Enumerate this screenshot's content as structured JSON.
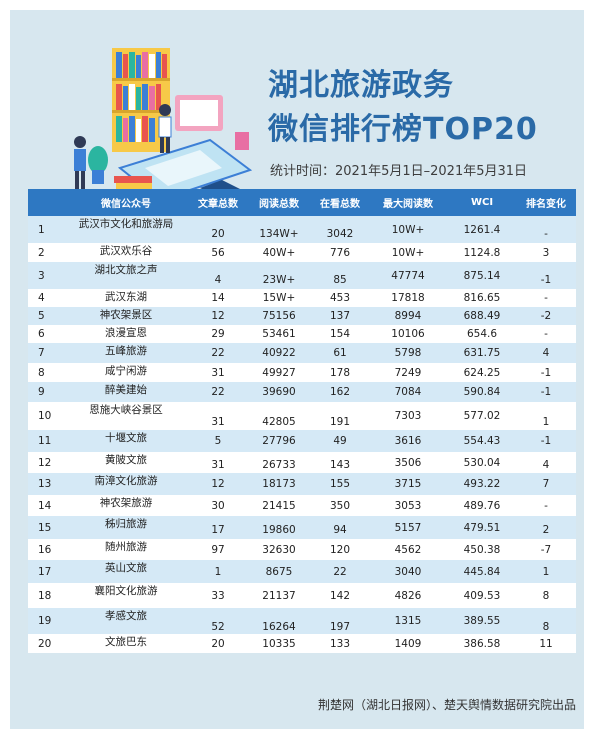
{
  "title_line1": "湖北旅游政务",
  "title_line2": "微信排行榜TOP20",
  "period": "统计时间：2021年5月1日–2021年5月31日",
  "headers": [
    "",
    "微信公众号",
    "文章总数",
    "阅读总数",
    "在看总数",
    "最大阅读数",
    "WCI",
    "排名变化"
  ],
  "rows": [
    [
      "1",
      "武汉市文化和旅游局",
      "20",
      "134W+",
      "3042",
      "10W+",
      "1261.4",
      "-"
    ],
    [
      "2",
      "武汉欢乐谷",
      "56",
      "40W+",
      "776",
      "10W+",
      "1124.8",
      "3"
    ],
    [
      "3",
      "湖北文旅之声",
      "4",
      "23W+",
      "85",
      "47774",
      "875.14",
      "-1"
    ],
    [
      "4",
      "武汉东湖",
      "14",
      "15W+",
      "453",
      "17818",
      "816.65",
      "-"
    ],
    [
      "5",
      "神农架景区",
      "12",
      "75156",
      "137",
      "8994",
      "688.49",
      "-2"
    ],
    [
      "6",
      "浪漫宣恩",
      "29",
      "53461",
      "154",
      "10106",
      "654.6",
      "-"
    ],
    [
      "7",
      "五峰旅游",
      "22",
      "40922",
      "61",
      "5798",
      "631.75",
      "4"
    ],
    [
      "8",
      "咸宁闲游",
      "31",
      "49927",
      "178",
      "7249",
      "624.25",
      "-1"
    ],
    [
      "9",
      "醉美建始",
      "22",
      "39690",
      "162",
      "7084",
      "590.84",
      "-1"
    ],
    [
      "10",
      "恩施大峡谷景区",
      "31",
      "42805",
      "191",
      "7303",
      "577.02",
      "1"
    ],
    [
      "11",
      "十堰文旅",
      "5",
      "27796",
      "49",
      "3616",
      "554.43",
      "-1"
    ],
    [
      "12",
      "黄陂文旅",
      "31",
      "26733",
      "143",
      "3506",
      "530.04",
      "4"
    ],
    [
      "13",
      "南漳文化旅游",
      "12",
      "18173",
      "155",
      "3715",
      "493.22",
      "7"
    ],
    [
      "14",
      "神农架旅游",
      "30",
      "21415",
      "350",
      "3053",
      "489.76",
      "-"
    ],
    [
      "15",
      "秭归旅游",
      "17",
      "19860",
      "94",
      "5157",
      "479.51",
      "2"
    ],
    [
      "16",
      "随州旅游",
      "97",
      "32630",
      "120",
      "4562",
      "450.38",
      "-7"
    ],
    [
      "17",
      "英山文旅",
      "1",
      "8675",
      "22",
      "3040",
      "445.84",
      "1"
    ],
    [
      "18",
      "襄阳文化旅游",
      "33",
      "21137",
      "142",
      "4826",
      "409.53",
      "8"
    ],
    [
      "19",
      "孝感文旅",
      "52",
      "16264",
      "197",
      "1315",
      "389.55",
      "8"
    ],
    [
      "20",
      "文旅巴东",
      "20",
      "10335",
      "133",
      "1409",
      "386.58",
      "11"
    ]
  ],
  "footer": "荆楚网（湖北日报网）、楚天舆情数据研究院出品",
  "colors": {
    "header_bg": "#2e78c2",
    "title": "#2a6aa7",
    "stripe": "#d5e9f6",
    "frame": "#d7e7ef"
  }
}
